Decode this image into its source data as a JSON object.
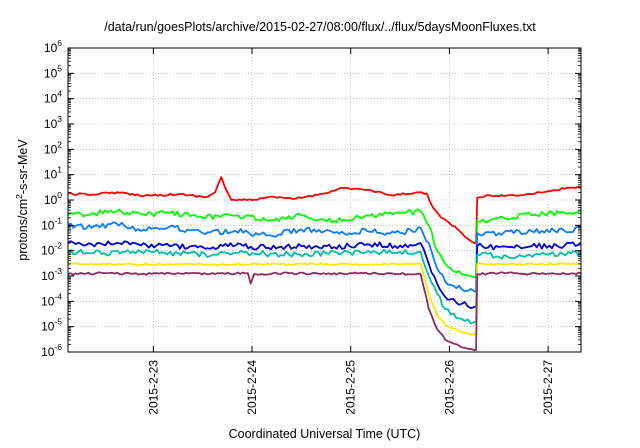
{
  "chart_data": {
    "type": "line",
    "title": "/data/run/goesPlots/archive/2015-02-27/08:00/flux/../flux/5daysMoonFluxes.txt",
    "xlabel": "Coordinated Universal Time (UTC)",
    "ylabel": {
      "pre": "protons/cm",
      "sup": "2",
      "post": "-s-sr-MeV"
    },
    "yscale": "log",
    "ylim": [
      1e-06,
      1000000.0
    ],
    "y_ticks": [
      {
        "base": "10",
        "exp": "-6"
      },
      {
        "base": "10",
        "exp": "-5"
      },
      {
        "base": "10",
        "exp": "-4"
      },
      {
        "base": "10",
        "exp": "-3"
      },
      {
        "base": "10",
        "exp": "-2"
      },
      {
        "base": "10",
        "exp": "-1"
      },
      {
        "base": "10",
        "exp": "0"
      },
      {
        "base": "10",
        "exp": "1"
      },
      {
        "base": "10",
        "exp": "2"
      },
      {
        "base": "10",
        "exp": "3"
      },
      {
        "base": "10",
        "exp": "4"
      },
      {
        "base": "10",
        "exp": "5"
      },
      {
        "base": "10",
        "exp": "6"
      }
    ],
    "xlim": [
      "2015-02-22T03:15",
      "2015-02-27T08:00"
    ],
    "x_ticks": [
      "2015-2-23",
      "2015-2-24",
      "2015-2-25",
      "2015-2-26",
      "2015-2-27"
    ],
    "grid": true,
    "legend": "none",
    "series": [
      {
        "color": "#ff0000",
        "values": [
          [
            "2015-02-22T03:15",
            1.8
          ],
          [
            "2015-02-22T08:00",
            1.6
          ],
          [
            "2015-02-22T14:00",
            2.0
          ],
          [
            "2015-02-22T22:00",
            1.5
          ],
          [
            "2015-02-23T06:00",
            1.7
          ],
          [
            "2015-02-23T13:00",
            1.3
          ],
          [
            "2015-02-23T15:00",
            2.0
          ],
          [
            "2015-02-23T16:30",
            8.0
          ],
          [
            "2015-02-23T17:30",
            3.0
          ],
          [
            "2015-02-23T19:00",
            1.0
          ],
          [
            "2015-02-24T00:00",
            1.0
          ],
          [
            "2015-02-24T04:00",
            1.3
          ],
          [
            "2015-02-24T10:00",
            1.1
          ],
          [
            "2015-02-24T16:00",
            1.6
          ],
          [
            "2015-02-24T22:00",
            3.0
          ],
          [
            "2015-02-25T04:00",
            2.5
          ],
          [
            "2015-02-25T10:00",
            1.5
          ],
          [
            "2015-02-25T16:00",
            2.0
          ],
          [
            "2015-02-25T18:30",
            1.8
          ],
          [
            "2015-02-25T20:00",
            0.5
          ],
          [
            "2015-02-25T22:00",
            0.2
          ],
          [
            "2015-02-26T02:00",
            0.07
          ],
          [
            "2015-02-26T05:00",
            0.025
          ],
          [
            "2015-02-26T06:00",
            0.02
          ],
          [
            "2015-02-26T06:30",
            0.02
          ],
          [
            "2015-02-26T06:45",
            1.2
          ],
          [
            "2015-02-26T10:00",
            1.5
          ],
          [
            "2015-02-26T16:00",
            1.5
          ],
          [
            "2015-02-26T22:00",
            2.0
          ],
          [
            "2015-02-27T04:00",
            2.8
          ],
          [
            "2015-02-27T08:00",
            3.2
          ]
        ]
      },
      {
        "color": "#00ff00",
        "values": [
          [
            "2015-02-22T03:15",
            0.25
          ],
          [
            "2015-02-22T09:00",
            0.3
          ],
          [
            "2015-02-22T15:00",
            0.35
          ],
          [
            "2015-02-22T21:00",
            0.28
          ],
          [
            "2015-02-23T04:00",
            0.3
          ],
          [
            "2015-02-23T12:00",
            0.2
          ],
          [
            "2015-02-23T20:00",
            0.25
          ],
          [
            "2015-02-24T04:00",
            0.15
          ],
          [
            "2015-02-24T12:00",
            0.25
          ],
          [
            "2015-02-24T20:00",
            0.15
          ],
          [
            "2015-02-25T04:00",
            0.25
          ],
          [
            "2015-02-25T12:00",
            0.3
          ],
          [
            "2015-02-25T17:00",
            0.35
          ],
          [
            "2015-02-25T19:00",
            0.1
          ],
          [
            "2015-02-25T21:00",
            0.01
          ],
          [
            "2015-02-25T23:00",
            0.003
          ],
          [
            "2015-02-26T03:00",
            0.0012
          ],
          [
            "2015-02-26T06:00",
            0.0009
          ],
          [
            "2015-02-26T06:30",
            0.0009
          ],
          [
            "2015-02-26T06:45",
            0.15
          ],
          [
            "2015-02-26T12:00",
            0.2
          ],
          [
            "2015-02-26T20:00",
            0.25
          ],
          [
            "2015-02-27T04:00",
            0.3
          ],
          [
            "2015-02-27T08:00",
            0.4
          ]
        ]
      },
      {
        "color": "#0a7cff",
        "values": [
          [
            "2015-02-22T03:15",
            0.1
          ],
          [
            "2015-02-22T09:00",
            0.08
          ],
          [
            "2015-02-22T15:00",
            0.12
          ],
          [
            "2015-02-22T21:00",
            0.06
          ],
          [
            "2015-02-23T04:00",
            0.09
          ],
          [
            "2015-02-23T12:00",
            0.05
          ],
          [
            "2015-02-23T20:00",
            0.06
          ],
          [
            "2015-02-24T04:00",
            0.04
          ],
          [
            "2015-02-24T12:00",
            0.07
          ],
          [
            "2015-02-24T20:00",
            0.05
          ],
          [
            "2015-02-25T04:00",
            0.06
          ],
          [
            "2015-02-25T12:00",
            0.05
          ],
          [
            "2015-02-25T17:00",
            0.08
          ],
          [
            "2015-02-25T19:00",
            0.02
          ],
          [
            "2015-02-25T21:00",
            0.002
          ],
          [
            "2015-02-25T23:00",
            0.0006
          ],
          [
            "2015-02-26T03:00",
            0.0003
          ],
          [
            "2015-02-26T06:00",
            0.00025
          ],
          [
            "2015-02-26T06:30",
            0.00025
          ],
          [
            "2015-02-26T06:45",
            0.05
          ],
          [
            "2015-02-26T12:00",
            0.05
          ],
          [
            "2015-02-26T20:00",
            0.06
          ],
          [
            "2015-02-27T04:00",
            0.06
          ],
          [
            "2015-02-27T08:00",
            0.08
          ]
        ]
      },
      {
        "color": "#0000e0",
        "values": [
          [
            "2015-02-22T03:15",
            0.02
          ],
          [
            "2015-02-22T09:00",
            0.018
          ],
          [
            "2015-02-22T15:00",
            0.02
          ],
          [
            "2015-02-22T21:00",
            0.016
          ],
          [
            "2015-02-23T04:00",
            0.015
          ],
          [
            "2015-02-23T12:00",
            0.014
          ],
          [
            "2015-02-23T20:00",
            0.016
          ],
          [
            "2015-02-24T04:00",
            0.013
          ],
          [
            "2015-02-24T12:00",
            0.015
          ],
          [
            "2015-02-24T20:00",
            0.014
          ],
          [
            "2015-02-25T04:00",
            0.018
          ],
          [
            "2015-02-25T12:00",
            0.016
          ],
          [
            "2015-02-25T17:00",
            0.02
          ],
          [
            "2015-02-25T19:00",
            0.003
          ],
          [
            "2015-02-25T21:00",
            0.0005
          ],
          [
            "2015-02-25T23:00",
            0.00015
          ],
          [
            "2015-02-26T03:00",
            8e-05
          ],
          [
            "2015-02-26T06:00",
            6e-05
          ],
          [
            "2015-02-26T06:30",
            6e-05
          ],
          [
            "2015-02-26T06:45",
            0.015
          ],
          [
            "2015-02-26T12:00",
            0.014
          ],
          [
            "2015-02-26T20:00",
            0.015
          ],
          [
            "2015-02-27T04:00",
            0.016
          ],
          [
            "2015-02-27T08:00",
            0.018
          ]
        ]
      },
      {
        "color": "#00bfa5",
        "values": [
          [
            "2015-02-22T03:15",
            0.009
          ],
          [
            "2015-02-22T12:00",
            0.008
          ],
          [
            "2015-02-22T21:00",
            0.009
          ],
          [
            "2015-02-23T06:00",
            0.008
          ],
          [
            "2015-02-23T15:00",
            0.007
          ],
          [
            "2015-02-24T00:00",
            0.008
          ],
          [
            "2015-02-24T09:00",
            0.007
          ],
          [
            "2015-02-24T18:00",
            0.008
          ],
          [
            "2015-02-25T03:00",
            0.008
          ],
          [
            "2015-02-25T12:00",
            0.009
          ],
          [
            "2015-02-25T17:00",
            0.009
          ],
          [
            "2015-02-25T19:00",
            0.001
          ],
          [
            "2015-02-25T21:00",
            0.0002
          ],
          [
            "2015-02-25T23:00",
            5e-05
          ],
          [
            "2015-02-26T03:00",
            2e-05
          ],
          [
            "2015-02-26T06:00",
            1.5e-05
          ],
          [
            "2015-02-26T06:30",
            1.5e-05
          ],
          [
            "2015-02-26T06:45",
            0.007
          ],
          [
            "2015-02-26T14:00",
            0.006
          ],
          [
            "2015-02-26T22:00",
            0.007
          ],
          [
            "2015-02-27T08:00",
            0.008
          ]
        ]
      },
      {
        "color": "#ffe600",
        "values": [
          [
            "2015-02-22T03:15",
            0.003
          ],
          [
            "2015-02-22T12:00",
            0.003
          ],
          [
            "2015-02-22T21:00",
            0.0028
          ],
          [
            "2015-02-23T06:00",
            0.003
          ],
          [
            "2015-02-23T15:00",
            0.0028
          ],
          [
            "2015-02-24T00:00",
            0.003
          ],
          [
            "2015-02-24T09:00",
            0.0029
          ],
          [
            "2015-02-24T18:00",
            0.003
          ],
          [
            "2015-02-25T03:00",
            0.0028
          ],
          [
            "2015-02-25T12:00",
            0.003
          ],
          [
            "2015-02-25T17:00",
            0.003
          ],
          [
            "2015-02-25T19:00",
            0.0002
          ],
          [
            "2015-02-25T21:00",
            3e-05
          ],
          [
            "2015-02-25T23:00",
            1.2e-05
          ],
          [
            "2015-02-26T03:00",
            6e-06
          ],
          [
            "2015-02-26T06:00",
            5e-06
          ],
          [
            "2015-02-26T06:30",
            5e-06
          ],
          [
            "2015-02-26T06:45",
            0.003
          ],
          [
            "2015-02-26T14:00",
            0.0028
          ],
          [
            "2015-02-26T22:00",
            0.003
          ],
          [
            "2015-02-27T08:00",
            0.003
          ]
        ]
      },
      {
        "color": "#8b2c5f",
        "values": [
          [
            "2015-02-22T03:15",
            0.0012
          ],
          [
            "2015-02-22T12:00",
            0.0013
          ],
          [
            "2015-02-22T21:00",
            0.0012
          ],
          [
            "2015-02-23T06:00",
            0.0013
          ],
          [
            "2015-02-23T15:00",
            0.0012
          ],
          [
            "2015-02-23T23:00",
            0.0013
          ],
          [
            "2015-02-23T23:40",
            0.0005
          ],
          [
            "2015-02-24T00:30",
            0.0012
          ],
          [
            "2015-02-24T09:00",
            0.0013
          ],
          [
            "2015-02-24T18:00",
            0.0012
          ],
          [
            "2015-02-25T03:00",
            0.0013
          ],
          [
            "2015-02-25T12:00",
            0.0012
          ],
          [
            "2015-02-25T17:00",
            0.0012
          ],
          [
            "2015-02-25T19:00",
            5e-05
          ],
          [
            "2015-02-25T21:00",
            8e-06
          ],
          [
            "2015-02-25T23:00",
            3e-06
          ],
          [
            "2015-02-26T03:00",
            1.5e-06
          ],
          [
            "2015-02-26T06:00",
            1.2e-06
          ],
          [
            "2015-02-26T06:30",
            1.2e-06
          ],
          [
            "2015-02-26T06:45",
            0.0012
          ],
          [
            "2015-02-26T14:00",
            0.0013
          ],
          [
            "2015-02-26T22:00",
            0.0012
          ],
          [
            "2015-02-27T08:00",
            0.0013
          ]
        ]
      }
    ]
  }
}
